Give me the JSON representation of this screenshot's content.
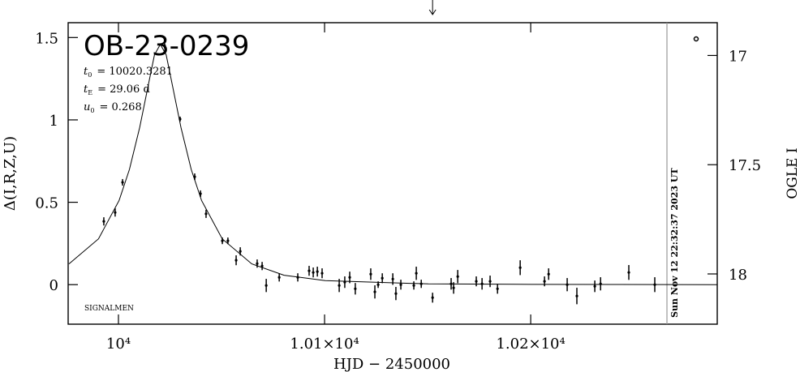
{
  "chart_data": {
    "type": "lightcurve",
    "title": "OB-23-0239",
    "params": [
      {
        "symbol": "t",
        "sub": "0",
        "text": "= 10020.3281"
      },
      {
        "symbol": "t",
        "sub": "E",
        "text": "= 29.06 d"
      },
      {
        "symbol": "u",
        "sub": "0",
        "text": "= 0.268"
      }
    ],
    "credit": "SIGNALMEN",
    "x_label": "HJD − 2450000",
    "y_label": "Δ(I,R,Z,U)",
    "y2_label": "OGLE I",
    "xlim": [
      9975.6,
      10290.5
    ],
    "ylim": [
      -0.24,
      1.59
    ],
    "y2lim": [
      18.23,
      16.85
    ],
    "xticks": [
      {
        "value": 10000,
        "label": "10⁴"
      },
      {
        "value": 10100,
        "label": "1.01×10⁴"
      },
      {
        "value": 10200,
        "label": "1.02×10⁴"
      }
    ],
    "yticks": [
      0,
      0.5,
      1,
      1.5
    ],
    "y2ticks": [
      17,
      17.5,
      18
    ],
    "vline": {
      "x": 10266.1,
      "label": "Sun Nov 12 22:32:37 2023 UT",
      "color": "#999999"
    },
    "arrow_x": 10152.4,
    "color": "#000000",
    "data": {
      "x": [
        9992.9,
        9998.4,
        10002.0,
        10022.4,
        10029.9,
        10037.0,
        10039.8,
        10042.5,
        10050.4,
        10053.1,
        10057.1,
        10059.1,
        10067.3,
        10069.7,
        10071.7,
        10078.0,
        10087.0,
        10092.5,
        10094.5,
        10096.5,
        10098.8,
        10107.1,
        10109.8,
        10112.2,
        10114.9,
        10122.4,
        10124.4,
        10126.0,
        10128.0,
        10133.1,
        10134.6,
        10137.0,
        10143.3,
        10144.5,
        10146.9,
        10152.4,
        10161.4,
        10162.6,
        10164.6,
        10173.6,
        10176.4,
        10180.3,
        10183.9,
        10194.9,
        10206.7,
        10208.7,
        10217.7,
        10222.4,
        10231.1,
        10233.9,
        10247.6,
        10260.2
      ],
      "values": [
        0.384,
        0.438,
        0.621,
        1.45,
        1.005,
        0.655,
        0.552,
        0.43,
        0.266,
        0.266,
        0.148,
        0.202,
        0.128,
        0.113,
        -0.005,
        0.044,
        0.044,
        0.084,
        0.074,
        0.079,
        0.069,
        -0.005,
        0.015,
        0.044,
        -0.025,
        0.064,
        -0.044,
        0.0,
        0.039,
        0.034,
        -0.054,
        0.0,
        -0.005,
        0.069,
        0.005,
        -0.079,
        0.005,
        -0.02,
        0.049,
        0.02,
        0.005,
        0.02,
        -0.025,
        0.103,
        0.02,
        0.064,
        0.0,
        -0.069,
        -0.01,
        0.005,
        0.074,
        0.0
      ],
      "errors": [
        0.025,
        0.025,
        0.02,
        0.015,
        0.015,
        0.02,
        0.02,
        0.025,
        0.02,
        0.02,
        0.03,
        0.025,
        0.025,
        0.025,
        0.04,
        0.025,
        0.025,
        0.03,
        0.03,
        0.03,
        0.03,
        0.04,
        0.035,
        0.035,
        0.035,
        0.035,
        0.04,
        0.02,
        0.03,
        0.035,
        0.04,
        0.03,
        0.025,
        0.04,
        0.025,
        0.03,
        0.035,
        0.035,
        0.04,
        0.03,
        0.035,
        0.035,
        0.03,
        0.045,
        0.03,
        0.035,
        0.04,
        0.05,
        0.035,
        0.04,
        0.045,
        0.045
      ]
    },
    "model": {
      "x": [
        9976,
        9990.33,
        10000.33,
        10005.33,
        10010.33,
        10015.33,
        10017.5,
        10020.33,
        10023.16,
        10025.33,
        10030.33,
        10035.33,
        10040.33,
        10050.33,
        10064.66,
        10080.33,
        10100.33,
        10150.33,
        10200.33,
        10290.33
      ],
      "values": [
        0.126,
        0.278,
        0.511,
        0.699,
        0.955,
        1.263,
        1.395,
        1.458,
        1.395,
        1.263,
        0.955,
        0.699,
        0.511,
        0.278,
        0.126,
        0.057,
        0.024,
        0.0044,
        0.0015,
        0.0003
      ]
    }
  }
}
